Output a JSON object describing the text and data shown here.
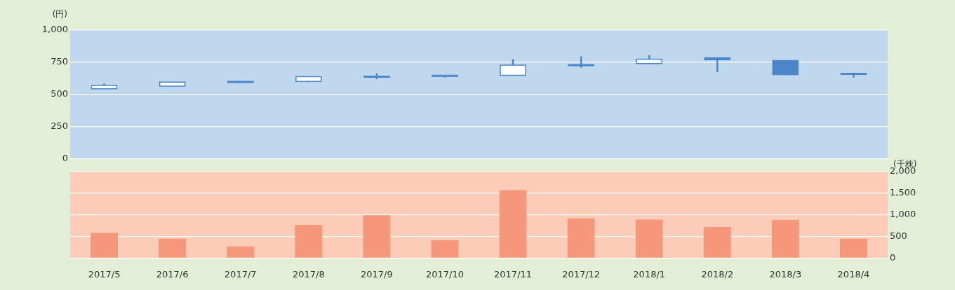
{
  "chart_data": [
    {
      "type": "candlestick",
      "ylabel": "(円)",
      "categories": [
        "2017/5",
        "2017/6",
        "2017/7",
        "2017/8",
        "2017/9",
        "2017/10",
        "2017/11",
        "2017/12",
        "2018/1",
        "2018/2",
        "2018/3",
        "2018/4"
      ],
      "ohlc": [
        [
          545,
          585,
          540,
          570
        ],
        [
          565,
          600,
          563,
          597
        ],
        [
          598,
          604,
          596,
          602
        ],
        [
          602,
          642,
          595,
          638
        ],
        [
          638,
          665,
          620,
          642
        ],
        [
          640,
          652,
          632,
          650
        ],
        [
          650,
          775,
          648,
          728
        ],
        [
          726,
          795,
          708,
          732
        ],
        [
          740,
          805,
          735,
          775
        ],
        [
          785,
          790,
          675,
          770
        ],
        [
          763,
          765,
          650,
          655
        ],
        [
          665,
          670,
          632,
          658
        ]
      ],
      "color": "#4a86c8",
      "ylim": [
        0,
        1000
      ],
      "yticks": [
        0,
        250,
        500,
        750,
        {
          "value": 1000,
          "label": "1,000"
        }
      ],
      "grid": "y",
      "tick_labels": "y"
    },
    {
      "type": "bar",
      "y2label": "(千株)",
      "categories": [
        "2017/5",
        "2017/6",
        "2017/7",
        "2017/8",
        "2017/9",
        "2017/10",
        "2017/11",
        "2017/12",
        "2018/1",
        "2018/2",
        "2018/3",
        "2018/4"
      ],
      "series": [
        {
          "color": "#f4977a",
          "axis": "y2",
          "values": [
            580,
            450,
            270,
            770,
            990,
            410,
            1570,
            920,
            890,
            720,
            880,
            450
          ]
        }
      ],
      "y2lim": [
        0,
        2000
      ],
      "y2ticks": [
        0,
        500,
        {
          "value": 1000,
          "label": "1,000"
        },
        {
          "value": 1500,
          "label": "1,500"
        },
        {
          "value": 2000,
          "label": "2,000"
        }
      ],
      "grid": "y"
    }
  ]
}
